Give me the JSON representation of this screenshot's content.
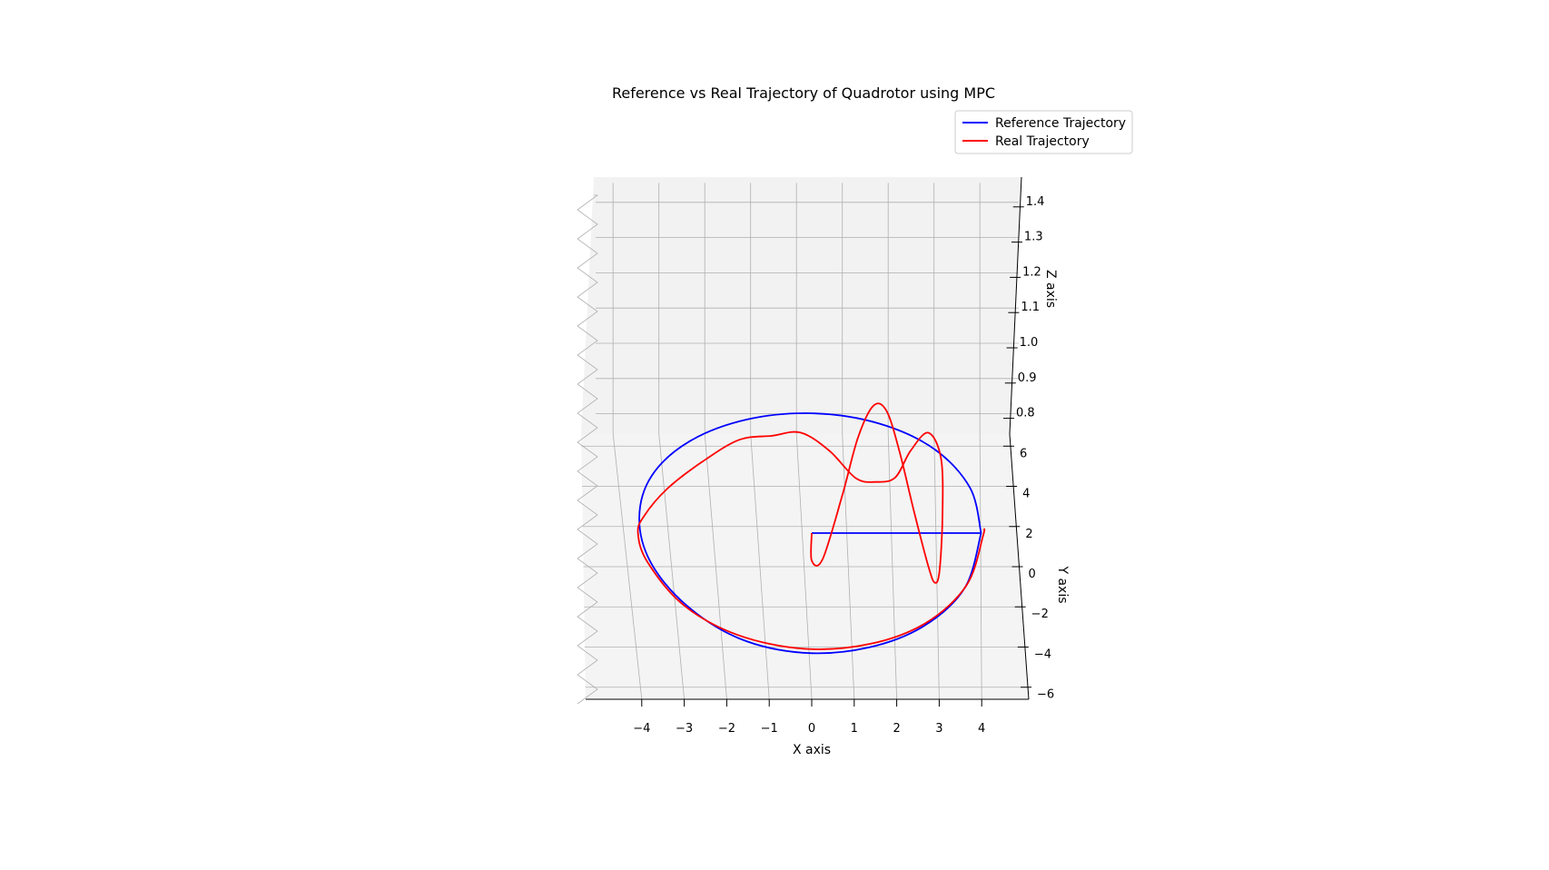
{
  "chart_data": {
    "type": "line",
    "projection": "3d",
    "title": "Reference vs Real Trajectory of Quadrotor using MPC",
    "xlabel": "X axis",
    "ylabel": "Y axis",
    "zlabel": "Z axis",
    "x_ticks": [
      "−4",
      "−3",
      "−2",
      "−1",
      "0",
      "1",
      "2",
      "3",
      "4"
    ],
    "y_ticks": [
      "6",
      "4",
      "2",
      "0",
      "−2",
      "−4",
      "−6"
    ],
    "z_ticks": [
      "1.4",
      "1.3",
      "1.2",
      "1.1",
      "1.0",
      "0.9",
      "0.8"
    ],
    "xlim": [
      -4.4,
      4.4
    ],
    "ylim": [
      -6.6,
      6.6
    ],
    "zlim": [
      0.7,
      1.45
    ],
    "grid": true,
    "legend_position": "top-right",
    "series": [
      {
        "name": "Reference Trajectory",
        "color": "#0000ff",
        "points": [
          [
            0,
            0,
            1.0
          ],
          [
            3.9,
            0,
            1.0
          ],
          [
            3.9,
            0,
            1.0
          ],
          [
            3.62,
            2.26,
            1.0
          ],
          [
            2.79,
            4.2,
            1.0
          ],
          [
            1.54,
            5.48,
            1.0
          ],
          [
            0.06,
            6.0,
            1.0
          ],
          [
            -1.45,
            5.7,
            1.0
          ],
          [
            -2.77,
            4.6,
            1.0
          ],
          [
            -3.65,
            2.87,
            1.0
          ],
          [
            -3.96,
            0.77,
            1.0
          ],
          [
            -3.73,
            -1.45,
            1.0
          ],
          [
            -2.93,
            -3.6,
            1.0
          ],
          [
            -1.7,
            -5.28,
            1.0
          ],
          [
            -0.2,
            -6.0,
            1.0
          ],
          [
            1.32,
            -5.74,
            1.0
          ],
          [
            2.62,
            -4.66,
            1.0
          ],
          [
            3.56,
            -2.73,
            1.0
          ],
          [
            3.9,
            0,
            1.0
          ]
        ]
      },
      {
        "name": "Real Trajectory",
        "color": "#ff0000",
        "points": [
          [
            0,
            0,
            1.0
          ],
          [
            0,
            -1.0,
            0.93
          ],
          [
            0.25,
            -0.55,
            0.86
          ],
          [
            0.7,
            1.45,
            1.08
          ],
          [
            1.05,
            3.4,
            1.25
          ],
          [
            1.4,
            4.25,
            1.39
          ],
          [
            1.7,
            4.1,
            1.37
          ],
          [
            2.0,
            2.9,
            1.22
          ],
          [
            2.35,
            0.9,
            1.03
          ],
          [
            2.7,
            -0.9,
            0.85
          ],
          [
            2.85,
            -1.45,
            0.81
          ],
          [
            2.95,
            -1.0,
            0.83
          ],
          [
            3.0,
            0.95,
            0.97
          ],
          [
            2.95,
            3.05,
            1.12
          ],
          [
            2.65,
            4.1,
            1.17
          ],
          [
            2.25,
            3.75,
            1.07
          ],
          [
            1.9,
            3.0,
            0.96
          ],
          [
            1.45,
            3.0,
            0.92
          ],
          [
            1.0,
            3.25,
            0.91
          ],
          [
            0.4,
            4.4,
            0.95
          ],
          [
            -0.25,
            5.2,
            0.97
          ],
          [
            -0.9,
            5.15,
            0.95
          ],
          [
            -1.65,
            5.05,
            0.93
          ],
          [
            -2.5,
            4.1,
            0.9
          ],
          [
            -3.3,
            2.6,
            0.93
          ],
          [
            -3.85,
            0.85,
            1.0
          ],
          [
            -4.0,
            0.0,
            1.0
          ],
          [
            -3.8,
            -1.45,
            1.0
          ],
          [
            -2.99,
            -3.6,
            1.0
          ],
          [
            -1.74,
            -5.1,
            1.0
          ],
          [
            -0.17,
            -5.8,
            1.0
          ],
          [
            1.38,
            -5.55,
            1.0
          ],
          [
            2.67,
            -4.5,
            1.0
          ],
          [
            3.6,
            -2.6,
            1.0
          ],
          [
            3.95,
            -0.1,
            1.0
          ],
          [
            3.95,
            0.2,
            1.0
          ]
        ]
      }
    ]
  }
}
